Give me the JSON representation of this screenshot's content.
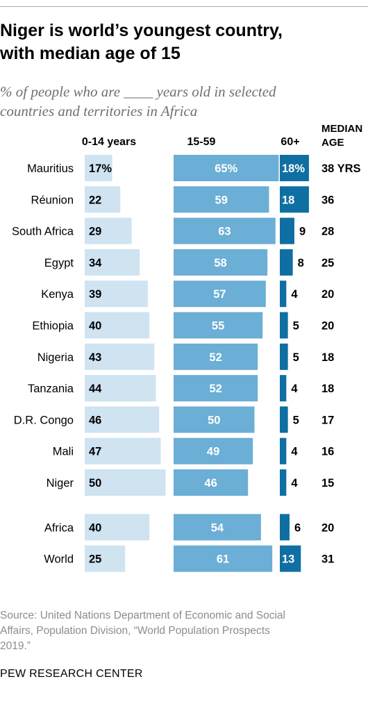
{
  "title_lines": [
    "Niger is world’s youngest country,",
    "with median age of 15"
  ],
  "subtitle_lines": [
    "% of people who are ____ years old in selected",
    "countries and territories in Africa"
  ],
  "source_lines": [
    "Source: United Nations Department of Economic and Social",
    "Affairs, Population Division, “World Population Prospects",
    "2019.”"
  ],
  "organization": "PEW RESEARCH CENTER",
  "colors": {
    "age_0_14": "#cfe3f1",
    "age_15_59": "#6baed6",
    "age_60_plus": "#0f6fa3",
    "label_on_light": "#000000",
    "label_on_dark": "#ffffff"
  },
  "chart_data": {
    "type": "bar",
    "orientation": "horizontal",
    "layout": "small-multiples",
    "columns": [
      "0-14 years",
      "15-59",
      "60+"
    ],
    "extra_column_header": [
      "MEDIAN",
      "AGE"
    ],
    "categories": [
      "Mauritius",
      "Réunion",
      "South Africa",
      "Egypt",
      "Kenya",
      "Ethiopia",
      "Nigeria",
      "Tanzania",
      "D.R. Congo",
      "Mali",
      "Niger",
      "Africa",
      "World"
    ],
    "series": [
      {
        "name": "0-14 years",
        "values": [
          17,
          22,
          29,
          34,
          39,
          40,
          43,
          44,
          46,
          47,
          50,
          40,
          25
        ],
        "labels": [
          "17%",
          "22",
          "29",
          "34",
          "39",
          "40",
          "43",
          "44",
          "46",
          "47",
          "50",
          "40",
          "25"
        ]
      },
      {
        "name": "15-59",
        "values": [
          65,
          59,
          63,
          58,
          57,
          55,
          52,
          52,
          50,
          49,
          46,
          54,
          61
        ],
        "labels": [
          "65%",
          "59",
          "63",
          "58",
          "57",
          "55",
          "52",
          "52",
          "50",
          "49",
          "46",
          "54",
          "61"
        ]
      },
      {
        "name": "60+",
        "values": [
          18,
          18,
          9,
          8,
          4,
          5,
          5,
          4,
          5,
          4,
          4,
          6,
          13
        ],
        "labels": [
          "18%",
          "18",
          "9",
          "8",
          "4",
          "5",
          "5",
          "4",
          "5",
          "4",
          "4",
          "6",
          "13"
        ]
      }
    ],
    "median_age_labels": [
      "38 YRS",
      "36",
      "28",
      "25",
      "20",
      "20",
      "18",
      "18",
      "17",
      "16",
      "15",
      "20",
      "31"
    ],
    "group_gap_before": "Africa"
  }
}
